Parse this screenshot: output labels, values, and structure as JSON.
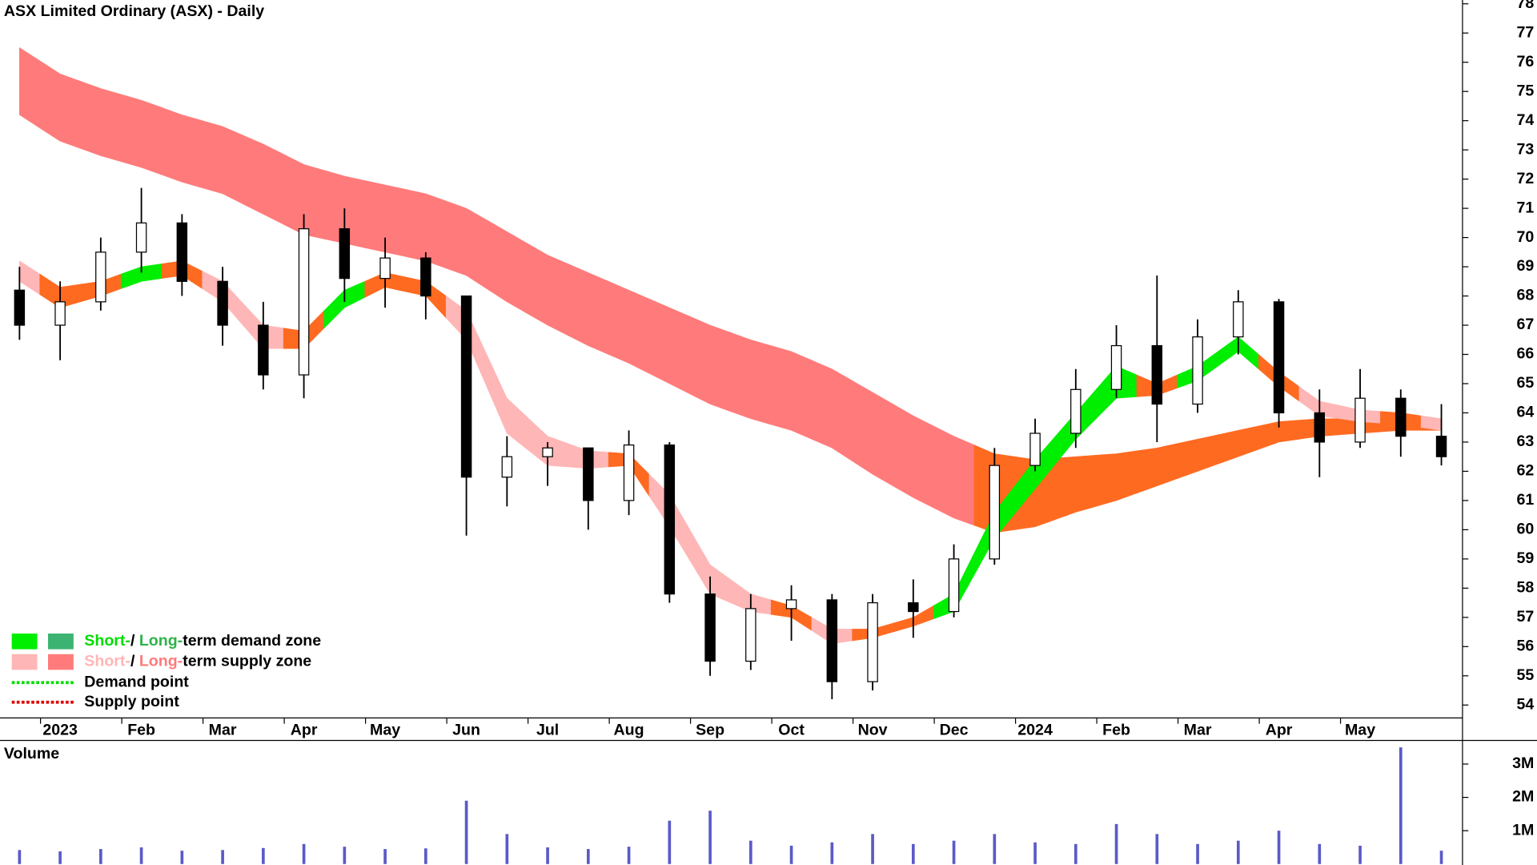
{
  "chart_data": {
    "type": "candlestick",
    "title": "ASX Limited Ordinary (ASX) - Daily",
    "volume_title": "Volume",
    "volume_title_color": "#4b0082",
    "xlim": [
      -0.74,
      17.26
    ],
    "xticks": [
      {
        "value": 0,
        "label": "2023"
      },
      {
        "value": 1,
        "label": "Feb"
      },
      {
        "value": 2,
        "label": "Mar"
      },
      {
        "value": 3,
        "label": "Apr"
      },
      {
        "value": 4,
        "label": "May"
      },
      {
        "value": 5,
        "label": "Jun"
      },
      {
        "value": 6,
        "label": "Jul"
      },
      {
        "value": 7,
        "label": "Aug"
      },
      {
        "value": 8,
        "label": "Sep"
      },
      {
        "value": 9,
        "label": "Oct"
      },
      {
        "value": 10,
        "label": "Nov"
      },
      {
        "value": 11,
        "label": "Dec"
      },
      {
        "value": 12,
        "label": "2024"
      },
      {
        "value": 13,
        "label": "Feb"
      },
      {
        "value": 14,
        "label": "Mar"
      },
      {
        "value": 15,
        "label": "Apr"
      },
      {
        "value": 16,
        "label": "May"
      }
    ],
    "ylim": [
      53.56,
      78.13
    ],
    "yticks": [
      54,
      55,
      56,
      57,
      58,
      59,
      60,
      61,
      62,
      63,
      64,
      65,
      66,
      67,
      68,
      69,
      70,
      71,
      72,
      73,
      74,
      75,
      76,
      77,
      78
    ],
    "volume_ylim": [
      0,
      3650000
    ],
    "volume_yticks": [
      {
        "value": 1000000,
        "label": "1M"
      },
      {
        "value": 2000000,
        "label": "2M"
      },
      {
        "value": 3000000,
        "label": "3M"
      }
    ],
    "volume_color": "#5a5ac8",
    "x": [
      -0.5,
      0,
      0.5,
      1,
      1.5,
      2,
      2.5,
      3,
      3.5,
      4,
      4.5,
      5,
      5.5,
      6,
      6.5,
      7,
      7.5,
      8,
      8.5,
      9,
      9.5,
      10,
      10.5,
      11,
      11.5,
      12,
      12.5,
      13,
      13.5,
      14,
      14.5,
      15,
      15.5,
      16,
      16.5,
      17
    ],
    "open": [
      68.2,
      67.0,
      67.8,
      69.5,
      70.5,
      68.5,
      67.0,
      65.3,
      70.3,
      68.6,
      69.3,
      68.0,
      61.8,
      62.5,
      62.8,
      61.0,
      62.9,
      57.8,
      55.5,
      57.3,
      57.6,
      54.8,
      57.5,
      57.2,
      59.0,
      62.2,
      63.3,
      64.8,
      66.3,
      64.3,
      66.6,
      67.8,
      64.0,
      63.0,
      64.5,
      63.2
    ],
    "high": [
      69.0,
      68.5,
      70.0,
      71.7,
      70.8,
      69.0,
      67.8,
      70.8,
      71.0,
      70.0,
      69.5,
      68.0,
      63.2,
      63.0,
      62.8,
      63.4,
      63.0,
      58.4,
      57.8,
      58.1,
      57.8,
      57.8,
      58.3,
      59.5,
      62.8,
      63.8,
      65.5,
      67.0,
      68.7,
      67.2,
      68.2,
      67.9,
      64.8,
      65.5,
      64.8,
      64.3
    ],
    "low": [
      66.5,
      65.8,
      67.5,
      68.8,
      68.0,
      66.3,
      64.8,
      64.5,
      67.8,
      67.6,
      67.2,
      59.8,
      60.8,
      61.5,
      60.0,
      60.5,
      57.5,
      55.0,
      55.2,
      56.2,
      54.2,
      54.5,
      56.3,
      57.0,
      58.8,
      62.0,
      62.8,
      64.5,
      63.0,
      64.0,
      66.0,
      63.5,
      61.8,
      62.8,
      62.5,
      62.2
    ],
    "close": [
      67.0,
      67.8,
      69.5,
      70.5,
      68.5,
      67.0,
      65.3,
      70.3,
      68.6,
      69.3,
      68.0,
      61.8,
      62.5,
      62.8,
      61.0,
      62.9,
      57.8,
      55.5,
      57.3,
      57.6,
      54.8,
      57.5,
      57.2,
      59.0,
      62.2,
      63.3,
      64.8,
      66.3,
      64.3,
      66.6,
      67.8,
      64.0,
      63.0,
      64.5,
      63.2,
      62.5
    ],
    "volume": [
      420000,
      380000,
      450000,
      500000,
      400000,
      420000,
      480000,
      600000,
      520000,
      450000,
      470000,
      1900000,
      900000,
      500000,
      450000,
      520000,
      1300000,
      1600000,
      700000,
      550000,
      650000,
      900000,
      600000,
      700000,
      900000,
      650000,
      600000,
      1200000,
      900000,
      600000,
      700000,
      1000000,
      600000,
      550000,
      3500000,
      400000
    ],
    "zones": [
      {
        "upper": [
          76.5,
          75.6,
          75.1,
          74.7,
          74.2,
          73.8,
          73.2,
          72.5,
          72.1,
          71.8,
          71.5,
          71.0,
          70.2,
          69.4,
          68.8,
          68.2,
          67.6,
          67.0,
          66.5,
          66.1,
          65.5,
          64.7,
          63.9,
          63.2,
          62.6,
          62.4,
          62.5,
          62.6,
          62.8,
          63.1,
          63.4,
          63.7,
          63.8,
          63.8,
          63.8,
          63.8
        ],
        "lower": [
          74.2,
          73.3,
          72.8,
          72.4,
          71.9,
          71.5,
          70.8,
          70.1,
          69.8,
          69.5,
          69.2,
          68.7,
          67.8,
          67.0,
          66.3,
          65.7,
          65.0,
          64.3,
          63.8,
          63.4,
          62.8,
          61.9,
          61.1,
          60.4,
          59.9,
          60.1,
          60.6,
          61.0,
          61.5,
          62.0,
          62.5,
          63.0,
          63.2,
          63.3,
          63.4,
          63.4
        ],
        "colors": [
          "#ff7b7b",
          "#ff7b7b",
          "#ff7b7b",
          "#ff7b7b",
          "#ff7b7b",
          "#ff7b7b",
          "#ff7b7b",
          "#ff7b7b",
          "#ff7b7b",
          "#ff7b7b",
          "#ff7b7b",
          "#ff7b7b",
          "#ff7b7b",
          "#ff7b7b",
          "#ff7b7b",
          "#ff7b7b",
          "#ff7b7b",
          "#ff7b7b",
          "#ff7b7b",
          "#ff7b7b",
          "#ff7b7b",
          "#ff7b7b",
          "#ff7b7b",
          "#ff7b7b",
          "#ff6a21",
          "#ff6a21",
          "#ff6a21",
          "#ff6a21",
          "#ff6a21",
          "#ff6a21",
          "#ff6a21",
          "#ff6a21",
          "#ff6a21",
          "#ff6a21",
          "#ff6a21",
          "#ff6a21"
        ]
      },
      {
        "upper": [
          69.2,
          68.3,
          68.5,
          69.0,
          69.2,
          68.5,
          67.0,
          66.8,
          68.2,
          68.8,
          68.5,
          67.5,
          64.5,
          63.2,
          62.7,
          62.6,
          61.2,
          58.8,
          57.8,
          57.4,
          56.6,
          56.6,
          57.0,
          57.8,
          60.6,
          62.4,
          64.0,
          65.6,
          65.0,
          65.6,
          66.6,
          65.4,
          64.4,
          64.1,
          64.0,
          63.8
        ],
        "lower": [
          68.5,
          67.6,
          68.0,
          68.5,
          68.7,
          67.8,
          66.2,
          66.2,
          67.6,
          68.3,
          68.0,
          66.5,
          63.3,
          62.2,
          62.1,
          62.2,
          60.1,
          57.8,
          57.2,
          57.0,
          56.1,
          56.3,
          56.7,
          57.2,
          59.7,
          61.4,
          63.1,
          64.5,
          64.6,
          65.1,
          66.1,
          64.9,
          63.9,
          63.7,
          63.6,
          63.4
        ],
        "colors": [
          "#ffb6b6",
          "#ff6a21",
          "#ff6a21",
          "#00ee00",
          "#ff6a21",
          "#ffb6b6",
          "#ffb6b6",
          "#ff6a21",
          "#00ee00",
          "#ff6a21",
          "#ff6a21",
          "#ffb6b6",
          "#ffb6b6",
          "#ffb6b6",
          "#ffb6b6",
          "#ff6a21",
          "#ffb6b6",
          "#ffb6b6",
          "#ffb6b6",
          "#ff6a21",
          "#ffb6b6",
          "#ff6a21",
          "#ff6a21",
          "#00ee00",
          "#00ee00",
          "#00ee00",
          "#00ee00",
          "#00ee00",
          "#ff6a21",
          "#00ee00",
          "#00ee00",
          "#ff6a21",
          "#ffb6b6",
          "#ffb6b6",
          "#ff6a21",
          "#ffb6b6"
        ]
      }
    ],
    "legend": [
      {
        "swatches": [
          "#00ee00",
          "#3cb371"
        ],
        "parts": [
          {
            "text": "Short-",
            "color": "#00dd00"
          },
          {
            "text": "/ ",
            "color": "#000000"
          },
          {
            "text": "Long-",
            "color": "#2db34a"
          },
          {
            "text": "term demand zone",
            "color": "#000000"
          }
        ]
      },
      {
        "swatches": [
          "#ffb6b6",
          "#ff7b7b"
        ],
        "parts": [
          {
            "text": "Short-",
            "color": "#ffb6b6"
          },
          {
            "text": "/ ",
            "color": "#000000"
          },
          {
            "text": "Long-",
            "color": "#ff7b7b"
          },
          {
            "text": "term supply zone",
            "color": "#000000"
          }
        ]
      }
    ],
    "points": [
      {
        "label": "Demand point",
        "color": "#00dd00"
      },
      {
        "label": "Supply point",
        "color": "#dd0000"
      }
    ]
  }
}
